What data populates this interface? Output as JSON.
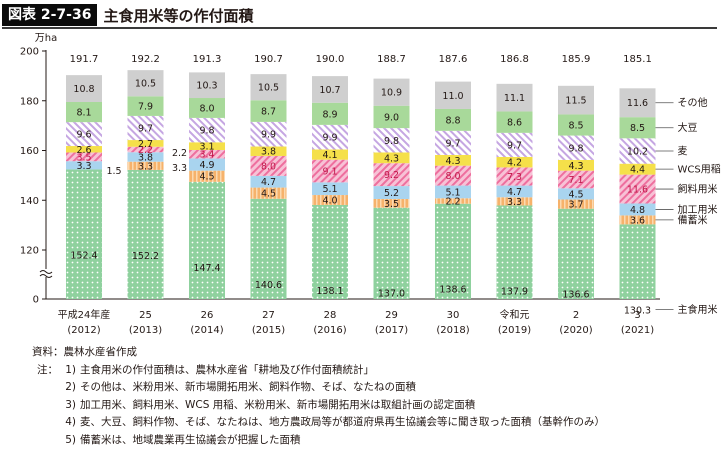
{
  "figure": {
    "label": "図表 2-7-36",
    "title": "主食用米等の作付面積"
  },
  "chart_data": {
    "type": "bar",
    "stacked": true,
    "unit": "万ha",
    "ylim": [
      0,
      200
    ],
    "axis_break": true,
    "y_ticks": [
      "0",
      "120",
      "140",
      "160",
      "180",
      "200"
    ],
    "grid": false,
    "legend_position": "right",
    "categories": [
      {
        "era": "平成24年産",
        "year": "(2012)"
      },
      {
        "era": "25",
        "year": "(2013)"
      },
      {
        "era": "26",
        "year": "(2014)"
      },
      {
        "era": "27",
        "year": "(2015)"
      },
      {
        "era": "28",
        "year": "(2016)"
      },
      {
        "era": "29",
        "year": "(2017)"
      },
      {
        "era": "30",
        "year": "(2018)"
      },
      {
        "era": "令和元",
        "year": "(2019)"
      },
      {
        "era": "2",
        "year": "(2020)"
      },
      {
        "era": "3",
        "year": "(2021)"
      }
    ],
    "totals": [
      "191.7",
      "192.2",
      "191.3",
      "190.7",
      "190.0",
      "188.7",
      "187.6",
      "186.8",
      "185.9",
      "185.1"
    ],
    "series": [
      {
        "name": "主食用米",
        "color": "#8fd19e",
        "pattern": "dots",
        "values": [
          152.4,
          152.2,
          147.4,
          140.6,
          138.1,
          137.0,
          138.6,
          137.9,
          136.6,
          130.3
        ]
      },
      {
        "name": "備蓄米",
        "color": "#f6b26b",
        "pattern": "vlines",
        "values": [
          null,
          3.3,
          4.5,
          4.5,
          4.0,
          3.5,
          2.2,
          3.3,
          3.7,
          3.6
        ]
      },
      {
        "name": "加工用米",
        "color": "#a9d4ef",
        "pattern": "solid",
        "values": [
          3.3,
          3.8,
          4.9,
          4.7,
          5.1,
          5.2,
          5.1,
          4.7,
          4.5,
          4.8
        ]
      },
      {
        "name": "飼料用米",
        "color": "#f08ab0",
        "pattern": "diag",
        "values": [
          3.5,
          2.2,
          3.4,
          8.0,
          9.1,
          9.2,
          8.0,
          7.3,
          7.1,
          11.6
        ]
      },
      {
        "name": "WCS用稲",
        "color": "#f5e04a",
        "pattern": "solid",
        "values": [
          2.6,
          2.7,
          3.1,
          3.8,
          4.1,
          4.3,
          4.3,
          4.2,
          4.3,
          4.4
        ]
      },
      {
        "name": "麦",
        "color": "#cdb4e6",
        "pattern": "diag2",
        "values": [
          9.6,
          9.7,
          9.8,
          9.9,
          9.9,
          9.8,
          9.7,
          9.7,
          9.8,
          10.2
        ]
      },
      {
        "name": "大豆",
        "color": "#a8d99a",
        "pattern": "solid",
        "values": [
          8.1,
          7.9,
          8.0,
          8.7,
          8.9,
          9.0,
          8.8,
          8.6,
          8.5,
          8.5
        ]
      },
      {
        "name": "その他",
        "color": "#cfcfcf",
        "pattern": "solid",
        "values": [
          10.8,
          10.5,
          10.3,
          10.5,
          10.7,
          10.9,
          11.0,
          11.1,
          11.5,
          11.6
        ]
      }
    ],
    "outside_labels": [
      {
        "category": 0,
        "text": "1.5"
      },
      {
        "category": 1,
        "text": "2.2"
      },
      {
        "category": 1,
        "text": "3.3"
      }
    ]
  },
  "notes": {
    "source": "資料：農林水産省作成",
    "head": "注：",
    "items": [
      {
        "num": "1)",
        "text": "主食用米の作付面積は、農林水産省「耕地及び作付面積統計」"
      },
      {
        "num": "2)",
        "text": "その他は、米粉用米、新市場開拓用米、飼料作物、そば、なたねの面積"
      },
      {
        "num": "3)",
        "text": "加工用米、飼料用米、WCS 用稲、米粉用米、新市場開拓用米は取組計画の認定面積"
      },
      {
        "num": "4)",
        "text": "麦、大豆、飼料作物、そば、なたねは、地方農政局等が都道府県再生協議会等に聞き取った面積（基幹作のみ）"
      },
      {
        "num": "5)",
        "text": "備蓄米は、地域農業再生協議会が把握した面積"
      }
    ]
  }
}
